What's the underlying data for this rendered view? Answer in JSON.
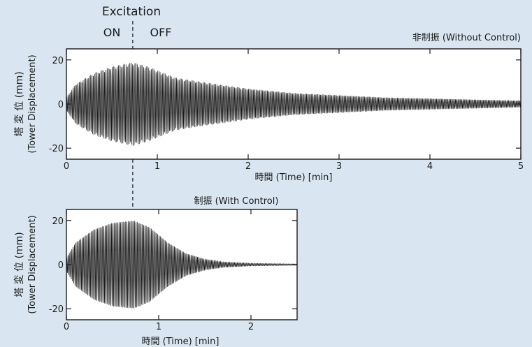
{
  "header": {
    "excitation": "Excitation",
    "on": "ON",
    "off": "OFF"
  },
  "colors": {
    "background": "#d9e6f1",
    "plot_background": "#ffffff",
    "signal": "#1a1a1a"
  },
  "chart_data": [
    {
      "type": "line",
      "title": "非制振 (Without Control)",
      "xlabel": "時間 (Time) [min]",
      "ylabel_line1": "塔 変 位 (mm)",
      "ylabel_line2": "(Tower Displacement)",
      "xlim": [
        0,
        5
      ],
      "ylim": [
        -25,
        25
      ],
      "xticks": [
        0,
        1,
        2,
        3,
        4,
        5
      ],
      "yticks": [
        -20,
        0,
        20
      ],
      "x_tick_labels": [
        "0",
        "1",
        "2",
        "3",
        "4",
        "5"
      ],
      "y_tick_labels": [
        "-20",
        "0",
        "20"
      ],
      "excitation_off_time": 0.73,
      "series": [
        {
          "oscillation_periods_per_min": 72,
          "envelope": {
            "t": [
              0,
              0.1,
              0.3,
              0.5,
              0.73,
              0.9,
              1.2,
              1.5,
              2.0,
              2.5,
              3.0,
              3.5,
              4.0,
              4.5,
              5.0
            ],
            "amp": [
              3,
              9,
              14,
              17,
              19,
              17,
              12,
              10,
              7,
              5,
              4,
              3,
              2.5,
              2,
              1.5
            ]
          }
        }
      ]
    },
    {
      "type": "line",
      "title": "制振 (With Control)",
      "xlabel": "時間 (Time) [min]",
      "ylabel_line1": "塔 変 位 (mm)",
      "ylabel_line2": "(Tower Displacement)",
      "xlim": [
        0,
        2.5
      ],
      "ylim": [
        -25,
        25
      ],
      "xticks": [
        0,
        1,
        2
      ],
      "yticks": [
        -20,
        0,
        20
      ],
      "x_tick_labels": [
        "0",
        "1",
        "2"
      ],
      "y_tick_labels": [
        "-20",
        "0",
        "20"
      ],
      "excitation_off_time": 0.73,
      "series": [
        {
          "oscillation_periods_per_min": 72,
          "envelope": {
            "t": [
              0,
              0.1,
              0.3,
              0.5,
              0.73,
              0.9,
              1.1,
              1.3,
              1.5,
              1.7,
              2.0,
              2.5
            ],
            "amp": [
              3,
              10,
              16,
              19,
              20,
              17,
              10,
              5,
              2.5,
              1.2,
              0.6,
              0.3
            ]
          }
        }
      ]
    }
  ]
}
